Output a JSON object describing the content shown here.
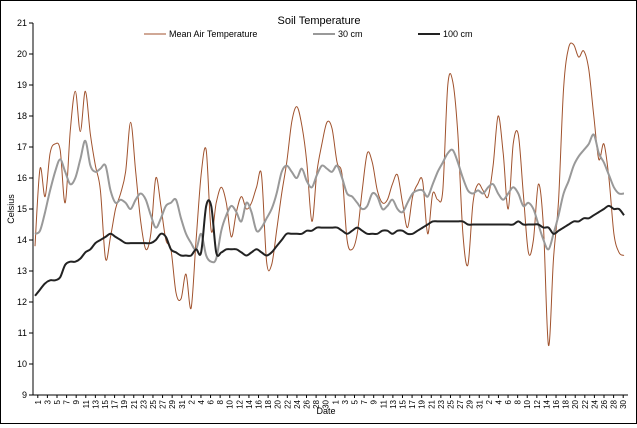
{
  "chart_data": {
    "type": "line",
    "title": "Soil Temperature",
    "xlabel": "Date",
    "ylabel": "Celsius",
    "ylim": [
      9,
      21
    ],
    "yticks": [
      9,
      10,
      11,
      12,
      13,
      14,
      15,
      16,
      17,
      18,
      19,
      20,
      21
    ],
    "grid": false,
    "legend": "top",
    "x_ticks": [
      "1",
      "3",
      "5",
      "7",
      "9",
      "11",
      "13",
      "15",
      "17",
      "19",
      "21",
      "23",
      "25",
      "27",
      "29",
      "31",
      "2",
      "4",
      "6",
      "8",
      "10",
      "12",
      "14",
      "16",
      "18",
      "20",
      "22",
      "24",
      "26",
      "28",
      "30",
      "1",
      "3",
      "5",
      "7",
      "9",
      "11",
      "13",
      "15",
      "17",
      "19",
      "21",
      "23",
      "25",
      "27",
      "29",
      "31",
      "2",
      "4",
      "6",
      "8",
      "10",
      "12",
      "14",
      "16",
      "18",
      "20",
      "22",
      "24",
      "26",
      "28",
      "30"
    ],
    "series": [
      {
        "name": "Mean Air Temperature",
        "color": "#a0522d",
        "values": [
          13.8,
          16.3,
          15.4,
          16.8,
          17.1,
          16.9,
          15.2,
          17.5,
          18.8,
          17.5,
          18.8,
          17.4,
          16.4,
          15.6,
          13.4,
          14.1,
          15.0,
          15.5,
          16.2,
          17.8,
          16.2,
          14.6,
          13.7,
          14.2,
          16.0,
          15.1,
          14.0,
          13.7,
          12.3,
          12.1,
          12.9,
          11.8,
          14.0,
          16.1,
          16.9,
          14.3,
          15.2,
          15.7,
          15.2,
          14.1,
          14.9,
          15.4,
          15.0,
          15.2,
          15.7,
          16.1,
          13.3,
          13.2,
          14.3,
          15.5,
          16.5,
          17.8,
          18.3,
          17.7,
          16.5,
          14.6,
          16.2,
          17.1,
          17.8,
          17.6,
          16.5,
          16.1,
          14.0,
          13.7,
          14.2,
          15.6,
          16.8,
          16.5,
          15.6,
          15.2,
          15.3,
          15.8,
          16.1,
          15.2,
          14.4,
          15.4,
          15.8,
          15.9,
          14.2,
          15.5,
          15.3,
          15.6,
          19.0,
          19.1,
          17.4,
          14.2,
          13.2,
          15.2,
          15.8,
          15.6,
          15.4,
          16.4,
          18.0,
          16.8,
          15.0,
          17.1,
          17.4,
          15.5,
          13.6,
          14.0,
          15.8,
          14.4,
          10.6,
          13.4,
          15.3,
          18.9,
          20.2,
          20.3,
          19.9,
          20.1,
          19.5,
          18.0,
          16.6,
          17.1,
          16.0,
          14.2,
          13.6,
          13.5
        ]
      },
      {
        "name": "30 cm",
        "color": "#999999",
        "values": [
          14.2,
          14.3,
          14.9,
          15.6,
          16.2,
          16.6,
          16.2,
          15.8,
          16.0,
          16.6,
          17.2,
          16.4,
          16.2,
          16.3,
          16.4,
          15.6,
          15.2,
          15.3,
          15.2,
          15.0,
          15.3,
          15.5,
          15.3,
          14.8,
          14.4,
          14.7,
          15.1,
          15.2,
          15.3,
          14.7,
          14.2,
          13.9,
          13.7,
          14.2,
          13.5,
          13.3,
          13.4,
          14.3,
          14.8,
          15.1,
          14.9,
          14.6,
          15.2,
          14.9,
          14.3,
          14.4,
          14.7,
          15.0,
          15.5,
          16.2,
          16.4,
          16.2,
          16.0,
          16.3,
          15.9,
          15.7,
          16.1,
          16.4,
          16.3,
          16.2,
          16.4,
          16.0,
          15.5,
          15.4,
          15.2,
          15.0,
          15.1,
          15.5,
          15.4,
          15.0,
          15.1,
          15.3,
          15.0,
          14.9,
          15.2,
          15.5,
          15.6,
          15.6,
          15.4,
          15.8,
          16.2,
          16.5,
          16.8,
          16.9,
          16.5,
          16.0,
          15.6,
          15.5,
          15.6,
          15.5,
          15.7,
          15.8,
          15.5,
          15.3,
          15.5,
          15.7,
          15.5,
          15.1,
          15.2,
          15.0,
          14.5,
          14.0,
          13.7,
          14.2,
          14.8,
          15.5,
          15.9,
          16.4,
          16.7,
          16.9,
          17.1,
          17.4,
          16.8,
          16.5,
          16.1,
          15.7,
          15.5,
          15.5
        ]
      },
      {
        "name": "100 cm",
        "color": "#222222",
        "values": [
          12.2,
          12.4,
          12.6,
          12.7,
          12.7,
          12.8,
          13.2,
          13.3,
          13.3,
          13.4,
          13.6,
          13.7,
          13.9,
          14.0,
          14.1,
          14.2,
          14.1,
          14.0,
          13.9,
          13.9,
          13.9,
          13.9,
          13.9,
          13.9,
          14.0,
          14.2,
          14.1,
          13.7,
          13.6,
          13.5,
          13.5,
          13.5,
          13.7,
          13.6,
          15.1,
          15.1,
          13.6,
          13.6,
          13.7,
          13.7,
          13.7,
          13.6,
          13.5,
          13.6,
          13.7,
          13.6,
          13.5,
          13.6,
          13.8,
          14.0,
          14.2,
          14.2,
          14.2,
          14.2,
          14.3,
          14.3,
          14.4,
          14.4,
          14.4,
          14.4,
          14.4,
          14.3,
          14.2,
          14.3,
          14.4,
          14.3,
          14.2,
          14.2,
          14.2,
          14.3,
          14.3,
          14.2,
          14.3,
          14.3,
          14.2,
          14.2,
          14.3,
          14.4,
          14.5,
          14.6,
          14.6,
          14.6,
          14.6,
          14.6,
          14.6,
          14.6,
          14.5,
          14.5,
          14.5,
          14.5,
          14.5,
          14.5,
          14.5,
          14.5,
          14.5,
          14.5,
          14.6,
          14.5,
          14.5,
          14.5,
          14.5,
          14.4,
          14.4,
          14.2,
          14.3,
          14.4,
          14.5,
          14.6,
          14.6,
          14.7,
          14.7,
          14.8,
          14.9,
          15.0,
          15.1,
          15.0,
          15.0,
          14.8
        ]
      }
    ]
  }
}
